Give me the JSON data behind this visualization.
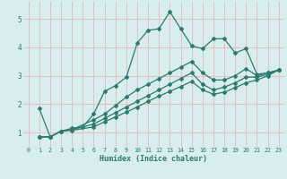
{
  "xlabel": "Humidex (Indice chaleur)",
  "bg_color": "#d8eded",
  "line_color": "#2d7a6e",
  "grid_color": "#e8b8b8",
  "xlim": [
    -0.5,
    23.5
  ],
  "ylim": [
    0.5,
    5.6
  ],
  "yticks": [
    1,
    2,
    3,
    4,
    5
  ],
  "xticks": [
    0,
    1,
    2,
    3,
    4,
    5,
    6,
    7,
    8,
    9,
    10,
    11,
    12,
    13,
    14,
    15,
    16,
    17,
    18,
    19,
    20,
    21,
    22,
    23
  ],
  "line1_x": [
    1,
    2,
    3,
    4,
    5,
    6,
    7,
    8,
    9,
    10,
    11,
    12,
    13,
    14,
    15,
    16,
    17,
    18,
    19,
    20,
    21,
    22,
    23
  ],
  "line1_y": [
    1.85,
    0.85,
    1.05,
    1.15,
    1.2,
    1.65,
    2.45,
    2.65,
    2.95,
    4.15,
    4.6,
    4.65,
    5.25,
    4.65,
    4.05,
    3.95,
    4.3,
    4.3,
    3.8,
    3.95,
    3.05,
    3.1,
    3.2
  ],
  "line2_x": [
    1,
    2,
    3,
    4,
    6,
    7,
    8,
    9,
    10,
    11,
    12,
    13,
    14,
    15,
    16,
    17,
    18,
    19,
    20,
    21,
    22,
    23
  ],
  "line2_y": [
    0.85,
    0.85,
    1.05,
    1.1,
    1.45,
    1.65,
    1.95,
    2.25,
    2.5,
    2.7,
    2.9,
    3.1,
    3.3,
    3.5,
    3.1,
    2.85,
    2.85,
    3.0,
    3.25,
    3.0,
    3.1,
    3.2
  ],
  "line3_x": [
    1,
    2,
    3,
    4,
    6,
    7,
    8,
    9,
    10,
    11,
    12,
    13,
    14,
    15,
    16,
    17,
    18,
    19,
    20,
    21,
    22,
    23
  ],
  "line3_y": [
    0.85,
    0.85,
    1.05,
    1.1,
    1.3,
    1.5,
    1.7,
    1.9,
    2.1,
    2.3,
    2.5,
    2.7,
    2.9,
    3.1,
    2.7,
    2.5,
    2.6,
    2.75,
    2.95,
    2.95,
    3.05,
    3.2
  ],
  "line4_x": [
    1,
    2,
    3,
    4,
    6,
    7,
    8,
    9,
    10,
    11,
    12,
    13,
    14,
    15,
    16,
    17,
    18,
    19,
    20,
    21,
    22,
    23
  ],
  "line4_y": [
    0.85,
    0.85,
    1.05,
    1.08,
    1.2,
    1.38,
    1.55,
    1.72,
    1.9,
    2.1,
    2.28,
    2.45,
    2.62,
    2.8,
    2.5,
    2.35,
    2.42,
    2.58,
    2.75,
    2.85,
    3.0,
    3.2
  ]
}
